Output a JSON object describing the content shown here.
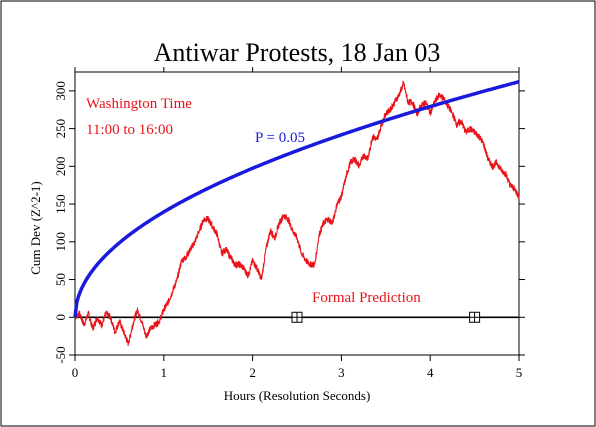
{
  "chart_data": {
    "type": "line",
    "title": "Antiwar Protests, 18 Jan 03",
    "xlabel": "Hours (Resolution Seconds)",
    "ylabel": "Cum Dev (Z^2-1)",
    "xlim": [
      0,
      5
    ],
    "ylim": [
      -50,
      325
    ],
    "x_ticks": [
      0,
      1,
      2,
      3,
      4,
      5
    ],
    "y_ticks": [
      -50,
      0,
      50,
      100,
      150,
      200,
      250,
      300
    ],
    "grid": false,
    "annotations": {
      "location": "Washington Time",
      "time_range": "11:00 to 16:00",
      "p_label": "P = 0.05",
      "prediction_label": "Formal Prediction"
    },
    "series": [
      {
        "name": "Cum Dev",
        "color": "#e8141a",
        "x": [
          0,
          0.05,
          0.1,
          0.15,
          0.2,
          0.25,
          0.3,
          0.35,
          0.4,
          0.45,
          0.5,
          0.55,
          0.6,
          0.65,
          0.7,
          0.75,
          0.8,
          0.85,
          0.9,
          0.95,
          1.0,
          1.05,
          1.1,
          1.15,
          1.2,
          1.25,
          1.3,
          1.35,
          1.4,
          1.45,
          1.5,
          1.55,
          1.6,
          1.65,
          1.7,
          1.75,
          1.8,
          1.85,
          1.9,
          1.95,
          2.0,
          2.05,
          2.1,
          2.15,
          2.2,
          2.25,
          2.3,
          2.35,
          2.4,
          2.45,
          2.5,
          2.55,
          2.6,
          2.65,
          2.7,
          2.75,
          2.8,
          2.85,
          2.9,
          2.95,
          3.0,
          3.05,
          3.1,
          3.15,
          3.2,
          3.25,
          3.3,
          3.35,
          3.4,
          3.45,
          3.5,
          3.55,
          3.6,
          3.65,
          3.7,
          3.75,
          3.8,
          3.85,
          3.9,
          3.95,
          4.0,
          4.05,
          4.1,
          4.15,
          4.2,
          4.25,
          4.3,
          4.35,
          4.4,
          4.45,
          4.5,
          4.55,
          4.6,
          4.65,
          4.7,
          4.75,
          4.8,
          4.85,
          4.9,
          4.95,
          5.0
        ],
        "values": [
          0,
          5,
          -10,
          5,
          -15,
          0,
          -10,
          5,
          0,
          -20,
          -5,
          -20,
          -35,
          -10,
          10,
          -5,
          -25,
          -15,
          -10,
          -5,
          10,
          20,
          35,
          50,
          75,
          80,
          90,
          100,
          115,
          130,
          130,
          120,
          110,
          85,
          90,
          80,
          70,
          70,
          65,
          55,
          75,
          65,
          50,
          90,
          115,
          105,
          125,
          135,
          130,
          115,
          105,
          85,
          75,
          70,
          70,
          110,
          125,
          130,
          125,
          150,
          160,
          185,
          205,
          210,
          200,
          215,
          210,
          240,
          235,
          255,
          270,
          275,
          285,
          295,
          310,
          285,
          285,
          270,
          280,
          285,
          270,
          285,
          295,
          290,
          280,
          270,
          255,
          260,
          245,
          250,
          245,
          240,
          230,
          210,
          200,
          205,
          195,
          190,
          175,
          170,
          160
        ]
      },
      {
        "name": "P = 0.05",
        "color": "#1a1adc",
        "type": "envelope",
        "formula": "1.645 * sqrt(2 * seconds)",
        "at_hours": [
          0.25,
          1,
          2,
          3,
          4,
          5
        ],
        "values": [
          70,
          140,
          197,
          242,
          279,
          312
        ]
      },
      {
        "name": "Formal Prediction",
        "color": "#000000",
        "type": "baseline",
        "value": 0,
        "markers_at": [
          2.5,
          4.5
        ]
      }
    ]
  }
}
